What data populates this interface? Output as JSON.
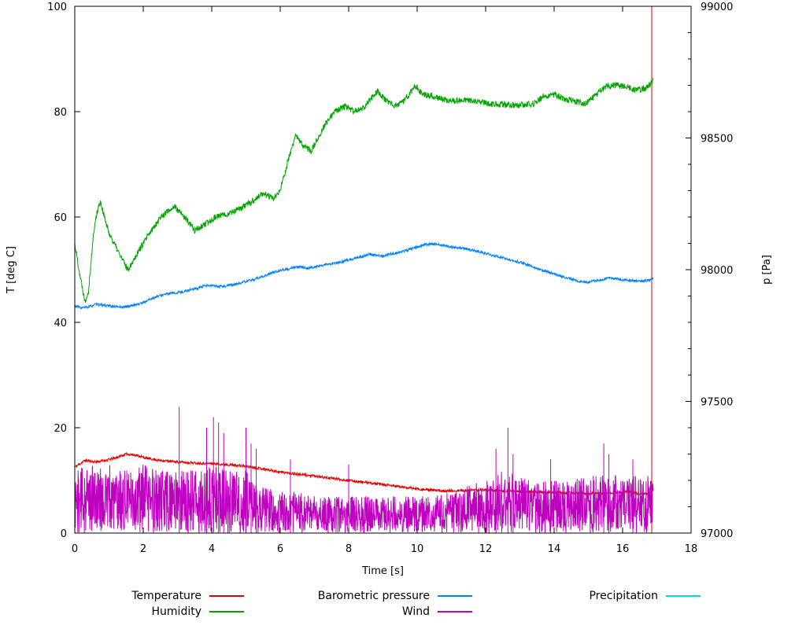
{
  "figure": {
    "bg": "#ffffff",
    "axis_color": "#000000"
  },
  "chart_data": {
    "type": "line",
    "title": "",
    "x_axis": {
      "label": "Time [s]",
      "min": 0,
      "max": 18,
      "major_ticks": [
        0,
        2,
        4,
        6,
        8,
        10,
        12,
        14,
        16,
        18
      ]
    },
    "y_axis_left": {
      "label": "T [deg C]",
      "min": 0,
      "max": 100,
      "major_ticks": [
        0,
        20,
        40,
        60,
        80,
        100
      ]
    },
    "y_axis_right": {
      "label": "p [Pa]",
      "min": 97000,
      "max": 99000,
      "major_ticks": [
        97000,
        97500,
        98000,
        98500,
        99000
      ],
      "minor_step": 100
    },
    "draw_order": [
      "Precipitation",
      "Temperature",
      "Humidity",
      "Barometric pressure",
      "Wind"
    ],
    "series": [
      {
        "name": "Temperature",
        "color": "#e00000",
        "axis": "left",
        "style": "line",
        "noise": 0.25,
        "seed": 11,
        "end_spike": {
          "x": 16.85,
          "y0": 0,
          "y1": 100
        },
        "points": [
          [
            0,
            12.5
          ],
          [
            0.3,
            13.8
          ],
          [
            0.6,
            13.5
          ],
          [
            0.9,
            13.8
          ],
          [
            1.2,
            14.3
          ],
          [
            1.5,
            15.0
          ],
          [
            1.8,
            14.8
          ],
          [
            2.1,
            14.2
          ],
          [
            2.5,
            13.8
          ],
          [
            3.0,
            13.5
          ],
          [
            3.5,
            13.3
          ],
          [
            4.0,
            13.2
          ],
          [
            4.5,
            13.0
          ],
          [
            5.0,
            12.7
          ],
          [
            5.5,
            12.2
          ],
          [
            6.0,
            11.6
          ],
          [
            6.5,
            11.2
          ],
          [
            7.0,
            10.8
          ],
          [
            7.5,
            10.4
          ],
          [
            8.0,
            10.0
          ],
          [
            8.5,
            9.6
          ],
          [
            9.0,
            9.2
          ],
          [
            9.5,
            8.8
          ],
          [
            10.0,
            8.4
          ],
          [
            10.5,
            8.1
          ],
          [
            11.0,
            8.0
          ],
          [
            11.5,
            8.1
          ],
          [
            12.0,
            8.2
          ],
          [
            12.5,
            8.0
          ],
          [
            13.0,
            7.9
          ],
          [
            13.5,
            7.8
          ],
          [
            14.0,
            7.7
          ],
          [
            14.5,
            7.6
          ],
          [
            15.0,
            7.5
          ],
          [
            15.5,
            7.6
          ],
          [
            16.0,
            7.8
          ],
          [
            16.3,
            7.7
          ],
          [
            16.6,
            7.4
          ],
          [
            16.85,
            7.5
          ]
        ]
      },
      {
        "name": "Humidity",
        "color": "#00a400",
        "axis": "left",
        "style": "line",
        "noise": 0.6,
        "seed": 22,
        "points": [
          [
            0,
            55
          ],
          [
            0.15,
            49
          ],
          [
            0.3,
            44
          ],
          [
            0.4,
            46
          ],
          [
            0.55,
            57
          ],
          [
            0.65,
            61
          ],
          [
            0.75,
            63
          ],
          [
            0.9,
            59
          ],
          [
            1.0,
            57
          ],
          [
            1.3,
            53
          ],
          [
            1.55,
            50
          ],
          [
            1.9,
            54
          ],
          [
            2.2,
            57
          ],
          [
            2.5,
            60
          ],
          [
            2.9,
            62
          ],
          [
            3.2,
            60
          ],
          [
            3.5,
            57.5
          ],
          [
            3.8,
            58.5
          ],
          [
            4.1,
            60
          ],
          [
            4.4,
            60.5
          ],
          [
            4.8,
            61.5
          ],
          [
            5.2,
            63
          ],
          [
            5.5,
            64.5
          ],
          [
            5.8,
            63.5
          ],
          [
            6.0,
            65
          ],
          [
            6.2,
            70
          ],
          [
            6.45,
            75.5
          ],
          [
            6.6,
            74
          ],
          [
            6.9,
            72.5
          ],
          [
            7.1,
            75
          ],
          [
            7.3,
            77.5
          ],
          [
            7.6,
            80
          ],
          [
            7.9,
            81
          ],
          [
            8.15,
            80
          ],
          [
            8.4,
            80.5
          ],
          [
            8.65,
            82.5
          ],
          [
            8.85,
            84
          ],
          [
            9.1,
            82
          ],
          [
            9.35,
            81
          ],
          [
            9.6,
            82
          ],
          [
            9.8,
            83.5
          ],
          [
            9.95,
            85
          ],
          [
            10.15,
            83.5
          ],
          [
            10.4,
            83
          ],
          [
            10.7,
            82.5
          ],
          [
            11.0,
            82
          ],
          [
            11.4,
            82.2
          ],
          [
            11.8,
            81.8
          ],
          [
            12.2,
            81.5
          ],
          [
            12.6,
            81.3
          ],
          [
            13.0,
            81.2
          ],
          [
            13.4,
            81.5
          ],
          [
            13.7,
            83
          ],
          [
            14.0,
            83.2
          ],
          [
            14.3,
            82.5
          ],
          [
            14.6,
            82
          ],
          [
            14.9,
            81.5
          ],
          [
            15.2,
            83
          ],
          [
            15.5,
            84.8
          ],
          [
            15.8,
            85
          ],
          [
            16.1,
            84.8
          ],
          [
            16.4,
            84
          ],
          [
            16.7,
            84.5
          ],
          [
            16.9,
            86
          ]
        ]
      },
      {
        "name": "Barometric pressure",
        "color": "#0080ff",
        "axis": "right",
        "style": "line",
        "noise": 5,
        "seed": 33,
        "points": [
          [
            0,
            97862
          ],
          [
            0.2,
            97855
          ],
          [
            0.4,
            97858
          ],
          [
            0.6,
            97868
          ],
          [
            0.8,
            97866
          ],
          [
            1.0,
            97862
          ],
          [
            1.2,
            97860
          ],
          [
            1.4,
            97858
          ],
          [
            1.6,
            97862
          ],
          [
            1.8,
            97868
          ],
          [
            2.0,
            97875
          ],
          [
            2.2,
            97888
          ],
          [
            2.4,
            97898
          ],
          [
            2.6,
            97905
          ],
          [
            2.8,
            97910
          ],
          [
            3.0,
            97912
          ],
          [
            3.2,
            97918
          ],
          [
            3.4,
            97925
          ],
          [
            3.6,
            97930
          ],
          [
            3.8,
            97938
          ],
          [
            4.0,
            97940
          ],
          [
            4.2,
            97935
          ],
          [
            4.4,
            97938
          ],
          [
            4.6,
            97942
          ],
          [
            4.8,
            97948
          ],
          [
            5.0,
            97955
          ],
          [
            5.2,
            97962
          ],
          [
            5.4,
            97970
          ],
          [
            5.6,
            97980
          ],
          [
            5.8,
            97990
          ],
          [
            6.0,
            97998
          ],
          [
            6.2,
            98002
          ],
          [
            6.4,
            98008
          ],
          [
            6.6,
            98010
          ],
          [
            6.8,
            98006
          ],
          [
            7.0,
            98010
          ],
          [
            7.2,
            98016
          ],
          [
            7.4,
            98020
          ],
          [
            7.6,
            98024
          ],
          [
            7.8,
            98030
          ],
          [
            8.0,
            98038
          ],
          [
            8.2,
            98044
          ],
          [
            8.4,
            98050
          ],
          [
            8.6,
            98058
          ],
          [
            8.8,
            98055
          ],
          [
            9.0,
            98052
          ],
          [
            9.2,
            98058
          ],
          [
            9.4,
            98064
          ],
          [
            9.6,
            98070
          ],
          [
            9.8,
            98078
          ],
          [
            10.0,
            98086
          ],
          [
            10.2,
            98094
          ],
          [
            10.4,
            98098
          ],
          [
            10.6,
            98096
          ],
          [
            10.8,
            98090
          ],
          [
            11.0,
            98086
          ],
          [
            11.2,
            98084
          ],
          [
            11.4,
            98080
          ],
          [
            11.6,
            98074
          ],
          [
            11.8,
            98068
          ],
          [
            12.0,
            98062
          ],
          [
            12.2,
            98055
          ],
          [
            12.4,
            98048
          ],
          [
            12.6,
            98042
          ],
          [
            12.8,
            98034
          ],
          [
            13.0,
            98028
          ],
          [
            13.2,
            98020
          ],
          [
            13.4,
            98010
          ],
          [
            13.6,
            98000
          ],
          [
            13.8,
            97992
          ],
          [
            14.0,
            97984
          ],
          [
            14.2,
            97976
          ],
          [
            14.4,
            97968
          ],
          [
            14.6,
            97960
          ],
          [
            14.8,
            97955
          ],
          [
            15.0,
            97952
          ],
          [
            15.2,
            97958
          ],
          [
            15.4,
            97963
          ],
          [
            15.6,
            97968
          ],
          [
            15.8,
            97966
          ],
          [
            16.0,
            97962
          ],
          [
            16.2,
            97960
          ],
          [
            16.4,
            97957
          ],
          [
            16.6,
            97956
          ],
          [
            16.8,
            97962
          ],
          [
            16.9,
            97965
          ]
        ]
      },
      {
        "name": "Wind",
        "color": "#c000c0",
        "axis": "left",
        "style": "noise-band",
        "seed": 44,
        "envelope": [
          [
            0,
            12
          ],
          [
            0.5,
            13
          ],
          [
            1,
            13
          ],
          [
            1.5,
            12
          ],
          [
            2,
            13
          ],
          [
            2.5,
            12
          ],
          [
            3,
            12
          ],
          [
            3.5,
            12
          ],
          [
            4,
            13
          ],
          [
            4.5,
            12
          ],
          [
            5,
            12
          ],
          [
            5.5,
            9
          ],
          [
            6,
            8
          ],
          [
            6.5,
            8
          ],
          [
            7,
            7
          ],
          [
            8,
            7
          ],
          [
            9,
            7
          ],
          [
            10,
            7
          ],
          [
            10.5,
            7
          ],
          [
            11,
            8
          ],
          [
            11.5,
            9
          ],
          [
            12,
            10
          ],
          [
            12.5,
            12
          ],
          [
            13,
            11
          ],
          [
            13.5,
            10
          ],
          [
            14,
            10
          ],
          [
            14.5,
            10
          ],
          [
            15,
            11
          ],
          [
            15.5,
            11
          ],
          [
            16,
            11
          ],
          [
            16.5,
            11
          ],
          [
            16.9,
            12
          ]
        ],
        "spikes": [
          [
            3.05,
            24
          ],
          [
            3.85,
            20
          ],
          [
            4.05,
            22
          ],
          [
            4.2,
            21
          ],
          [
            4.35,
            19
          ],
          [
            5.0,
            20
          ],
          [
            5.15,
            17
          ],
          [
            5.3,
            16
          ],
          [
            6.3,
            14
          ],
          [
            8.0,
            13
          ],
          [
            12.3,
            16
          ],
          [
            12.65,
            20
          ],
          [
            12.8,
            15
          ],
          [
            13.9,
            14
          ],
          [
            15.45,
            17
          ],
          [
            15.6,
            15
          ],
          [
            16.3,
            14
          ]
        ]
      },
      {
        "name": "Precipitation",
        "color": "#00d8d8",
        "axis": "left",
        "style": "line",
        "noise": 0,
        "seed": 55,
        "points": [
          [
            0,
            0
          ],
          [
            16.85,
            0
          ]
        ]
      }
    ]
  },
  "legend": {
    "rows": [
      [
        "Temperature",
        "Barometric pressure",
        "Precipitation"
      ],
      [
        "Humidity",
        "Wind"
      ]
    ]
  }
}
